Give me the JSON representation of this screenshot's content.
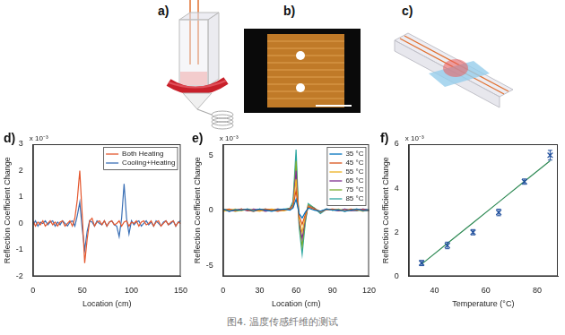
{
  "panels": [
    {
      "label": "a)"
    },
    {
      "label": "b)"
    },
    {
      "label": "c)"
    }
  ],
  "caption": "图4. 温度传感纤维的测试",
  "chart_data": [
    {
      "panel": "d)",
      "type": "line",
      "x_label": "Location (cm)",
      "y_label": "Reflection Coefficient Change",
      "y_multiplier": "x 10⁻³",
      "x": [
        0,
        2.5,
        5,
        7.5,
        10,
        12.5,
        15,
        17.5,
        20,
        22.5,
        25,
        27.5,
        30,
        32.5,
        35,
        37.5,
        40,
        42.5,
        45,
        47.5,
        50,
        52.5,
        55,
        57.5,
        60,
        62.5,
        65,
        67.5,
        70,
        72.5,
        75,
        77.5,
        80,
        82.5,
        85,
        87.5,
        90,
        92.5,
        95,
        97.5,
        100,
        102.5,
        105,
        107.5,
        110,
        112.5,
        115,
        117.5,
        120,
        122.5,
        125,
        127.5,
        130,
        132.5,
        135,
        137.5,
        140,
        142.5,
        145,
        147.5,
        150
      ],
      "series": [
        {
          "name": "Both Heating",
          "color": "#e4572e",
          "marker": "none",
          "line_style": "solid",
          "values": [
            0.1,
            -0.1,
            0.05,
            -0.05,
            0.1,
            -0.1,
            0,
            0.1,
            -0.05,
            0.05,
            -0.1,
            0.05,
            0.1,
            -0.1,
            0,
            0.1,
            -0.1,
            0.2,
            0.9,
            2.0,
            0.3,
            -1.5,
            -0.6,
            0.1,
            0.2,
            -0.1,
            0.05,
            0.1,
            -0.05,
            0.1,
            -0.1,
            0.05,
            0.1,
            -0.05,
            0,
            0.1,
            -0.1,
            0.05,
            0.1,
            -0.1,
            0.05,
            0,
            0.1,
            -0.1,
            0.05,
            0.1,
            -0.05,
            0,
            0.1,
            -0.1,
            0.05,
            0.1,
            -0.1,
            0,
            0.1,
            -0.05,
            0.05,
            0.1,
            -0.1,
            0.05,
            0
          ]
        },
        {
          "name": "Cooling+Heating",
          "color": "#3a6fb5",
          "marker": "none",
          "line_style": "solid",
          "values": [
            -0.05,
            0.1,
            -0.1,
            0.05,
            0,
            0.1,
            -0.05,
            0.05,
            0.1,
            -0.1,
            0.05,
            -0.05,
            0.1,
            0,
            -0.1,
            0.05,
            0.1,
            -0.1,
            0.3,
            0.8,
            -0.2,
            -1.0,
            -0.3,
            0.1,
            0.05,
            -0.1,
            0.1,
            0,
            -0.05,
            0.1,
            -0.1,
            0.05,
            0.1,
            -0.05,
            -0.1,
            -0.5,
            0.2,
            1.5,
            0.2,
            -0.4,
            0.1,
            -0.05,
            0.05,
            0.1,
            -0.1,
            0,
            0.1,
            -0.05,
            0.05,
            -0.1,
            0.1,
            0,
            -0.1,
            0.05,
            0.1,
            -0.05,
            0,
            0.1,
            -0.1,
            0.05,
            0.1
          ]
        }
      ],
      "xlim": [
        0,
        150
      ],
      "xticks": [
        0,
        50,
        100,
        150
      ],
      "ylim": [
        -2,
        3
      ],
      "yticks": [
        -2,
        -1,
        0,
        1,
        2,
        3
      ],
      "grid": false,
      "legend": "upper right"
    },
    {
      "panel": "e)",
      "type": "line",
      "x_label": "Location (cm)",
      "y_label": "Reflection Coefficient Change",
      "y_multiplier": "x 10⁻³",
      "x": [
        0,
        5,
        10,
        15,
        20,
        25,
        30,
        35,
        40,
        45,
        50,
        55,
        57.5,
        60,
        62.5,
        65,
        67.5,
        70,
        75,
        80,
        85,
        90,
        95,
        100,
        105,
        110,
        115,
        120
      ],
      "series": [
        {
          "name": "35 °C",
          "color": "#0072bd",
          "marker": "none",
          "line_style": "solid",
          "values": [
            0.1,
            -0.1,
            0.05,
            0,
            0.1,
            -0.05,
            0.1,
            0,
            -0.1,
            0.05,
            0.1,
            0,
            0.2,
            1.0,
            -0.3,
            -0.7,
            -0.2,
            0.2,
            0,
            -0.1,
            0.1,
            0,
            0.05,
            -0.1,
            0,
            0.1,
            -0.05,
            0
          ]
        },
        {
          "name": "45 °C",
          "color": "#d95319",
          "marker": "none",
          "line_style": "solid",
          "values": [
            0,
            0.1,
            -0.05,
            0.1,
            0,
            -0.1,
            0.05,
            0.1,
            0,
            -0.1,
            0.05,
            0.1,
            0.3,
            1.8,
            -0.5,
            -1.3,
            -0.4,
            0.3,
            0.1,
            -0.1,
            0.05,
            0.1,
            0,
            -0.05,
            0.1,
            0,
            0.05,
            -0.05
          ]
        },
        {
          "name": "55 °C",
          "color": "#edb120",
          "marker": "none",
          "line_style": "solid",
          "values": [
            -0.1,
            0,
            0.1,
            -0.05,
            0.1,
            0,
            -0.1,
            0.05,
            0.1,
            0,
            -0.05,
            0.1,
            0.4,
            2.8,
            -0.8,
            -2.0,
            -0.6,
            0.35,
            0.1,
            -0.15,
            0.1,
            0,
            0.1,
            -0.05,
            0,
            0.05,
            -0.1,
            0.05
          ]
        },
        {
          "name": "65 °C",
          "color": "#7e2f8e",
          "marker": "none",
          "line_style": "solid",
          "values": [
            0.05,
            -0.1,
            0,
            0.1,
            -0.05,
            0.1,
            0,
            -0.1,
            0.05,
            0.1,
            0,
            0.15,
            0.5,
            3.6,
            -1.0,
            -2.6,
            -0.8,
            0.4,
            0.15,
            -0.2,
            0.1,
            0.05,
            -0.05,
            0.1,
            -0.05,
            0,
            0.1,
            0
          ]
        },
        {
          "name": "75 °C",
          "color": "#77ac30",
          "marker": "none",
          "line_style": "solid",
          "values": [
            0,
            0.05,
            -0.1,
            0,
            0.1,
            -0.05,
            0.1,
            0,
            -0.05,
            0.1,
            0.05,
            0.15,
            0.6,
            4.5,
            -1.2,
            -3.3,
            -1.0,
            0.5,
            0.2,
            -0.2,
            0.1,
            0,
            0.05,
            -0.1,
            0.05,
            0.1,
            -0.05,
            0
          ]
        },
        {
          "name": "85 °C",
          "color": "#2aa6a0",
          "marker": "none",
          "line_style": "solid",
          "values": [
            0.1,
            0,
            -0.05,
            0.1,
            0,
            -0.1,
            0.05,
            0.1,
            0,
            -0.05,
            0.1,
            0.2,
            0.8,
            5.5,
            -1.5,
            -4.0,
            -1.2,
            0.6,
            0.2,
            -0.3,
            0.1,
            0.05,
            -0.05,
            0.1,
            0,
            -0.05,
            0.1,
            0.05
          ]
        }
      ],
      "xlim": [
        0,
        120
      ],
      "xticks": [
        0,
        30,
        60,
        90,
        120
      ],
      "ylim": [
        -6,
        6
      ],
      "yticks": [
        -5,
        0,
        5
      ],
      "grid": false,
      "legend": "upper right"
    },
    {
      "panel": "f)",
      "type": "scatter",
      "x_label": "Temperature (°C)",
      "y_label": "Reflection Coefficient Change",
      "y_multiplier": "x 10⁻³",
      "x": [
        35,
        45,
        55,
        65,
        75,
        85
      ],
      "series": [
        {
          "type": "scatter",
          "color": "#1f4e9c",
          "marker": "x",
          "values": [
            0.6,
            1.4,
            2.0,
            2.9,
            4.3,
            5.5
          ],
          "errors": [
            0.12,
            0.15,
            0.12,
            0.15,
            0.12,
            0.22
          ]
        },
        {
          "type": "line",
          "color": "#2f8a55",
          "marker": "none",
          "line_style": "solid",
          "values": [
            0.55,
            1.49,
            2.43,
            3.37,
            4.31,
            5.25
          ]
        }
      ],
      "xlim": [
        30,
        88
      ],
      "xticks": [
        40,
        60,
        80
      ],
      "ylim": [
        0,
        6
      ],
      "yticks": [
        0,
        2,
        4,
        6
      ],
      "grid": false
    }
  ]
}
